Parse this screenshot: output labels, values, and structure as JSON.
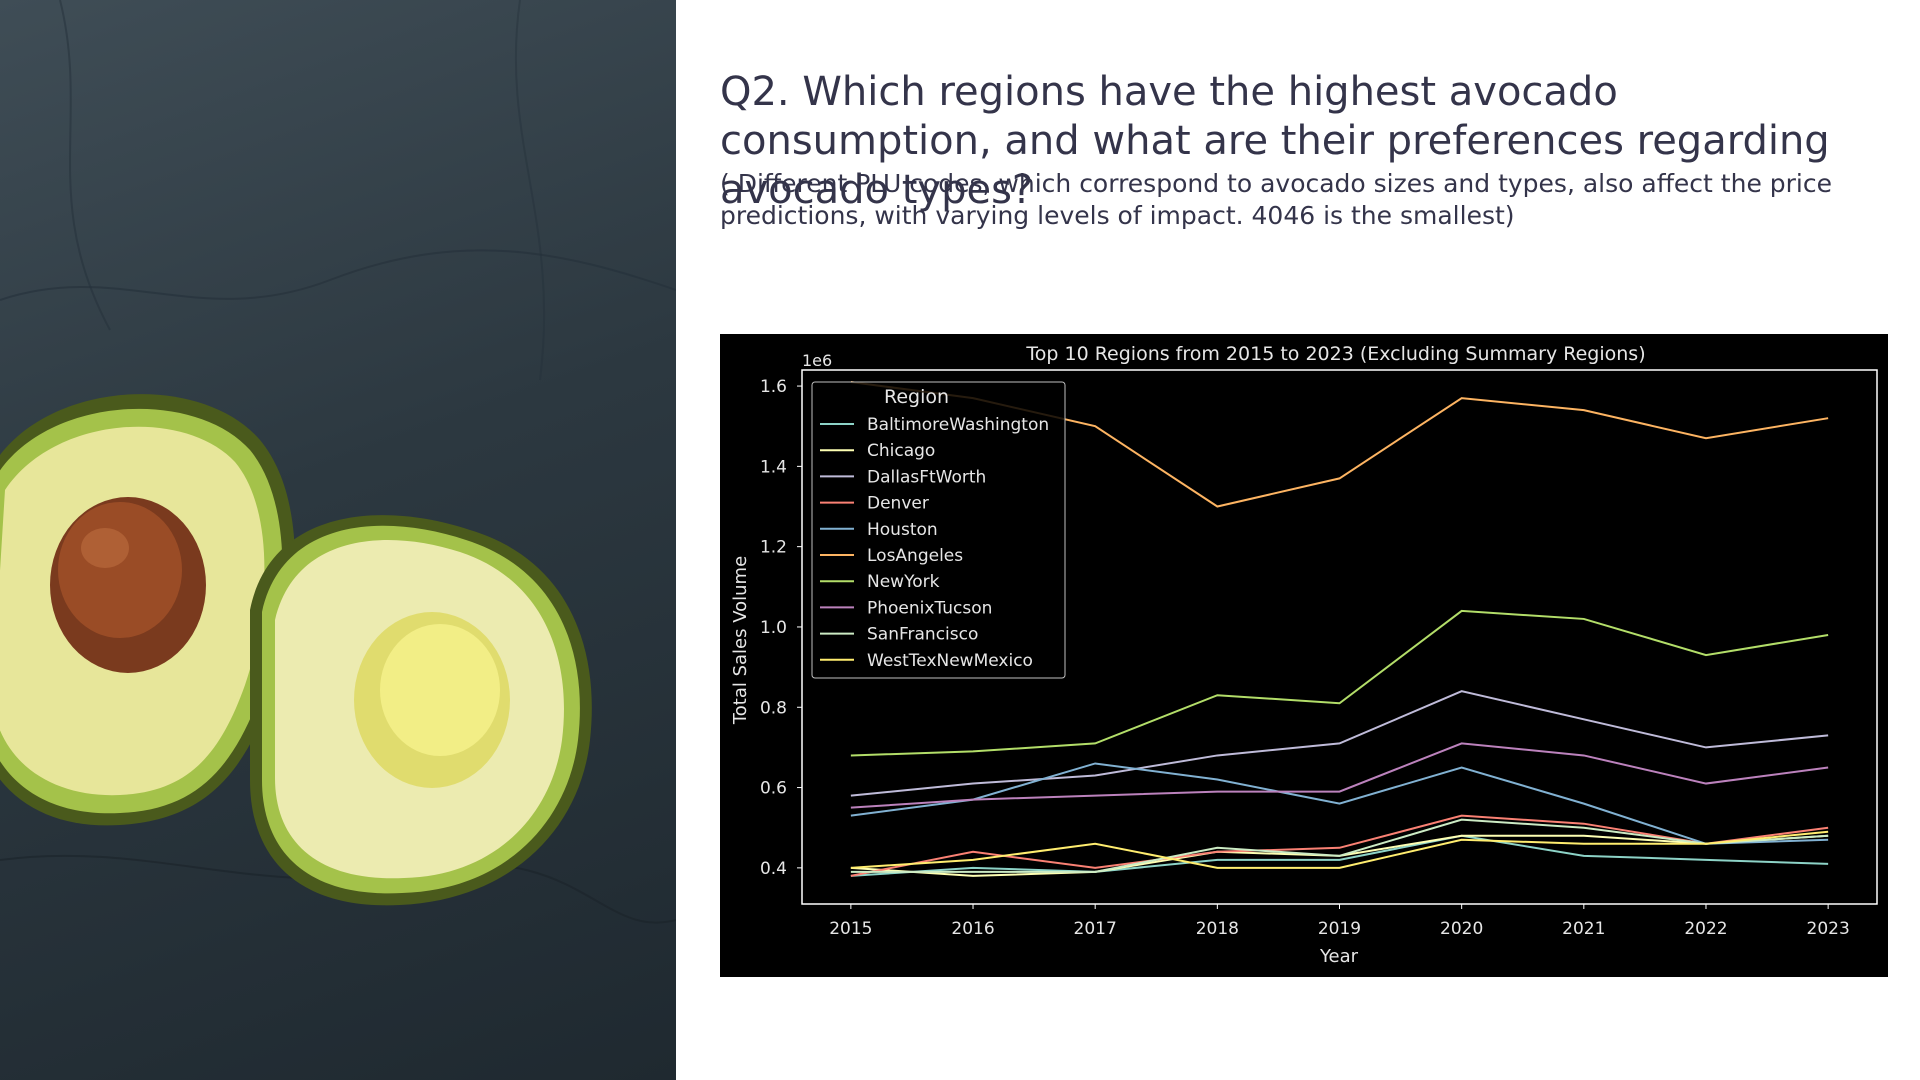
{
  "slide": {
    "title": "Q2. Which regions have the highest avocado consumption, and what are their preferences regarding avocado types?",
    "subtitle": "( Different PLU codes, which correspond to avocado sizes and types, also affect the price predictions, with varying levels of impact. 4046 is the smallest)",
    "image_subject": "halved-avocado-photo"
  },
  "chart_data": {
    "type": "line",
    "title": "Top 10 Regions from 2015 to 2023 (Excluding Summary Regions)",
    "xlabel": "Year",
    "ylabel": "Total Sales Volume",
    "y_scale_label": "1e6",
    "x": [
      2015,
      2016,
      2017,
      2018,
      2019,
      2020,
      2021,
      2022,
      2023
    ],
    "xlim": [
      2014.6,
      2023.4
    ],
    "ylim": [
      0.31,
      1.64
    ],
    "yticks": [
      0.4,
      0.6,
      0.8,
      1.0,
      1.2,
      1.4,
      1.6
    ],
    "ytick_labels": [
      "0.4",
      "0.6",
      "0.8",
      "1.0",
      "1.2",
      "1.4",
      "1.6"
    ],
    "xtick_labels": [
      "2015",
      "2016",
      "2017",
      "2018",
      "2019",
      "2020",
      "2021",
      "2022",
      "2023"
    ],
    "grid": false,
    "legend_title": "Region",
    "legend_position": "top-left",
    "background": "#000000",
    "series": [
      {
        "name": "BaltimoreWashington",
        "color": "#8dd3c7",
        "values": [
          0.38,
          0.4,
          0.39,
          0.42,
          0.42,
          0.48,
          0.43,
          0.42,
          0.41
        ]
      },
      {
        "name": "Chicago",
        "color": "#feffb3",
        "values": [
          0.4,
          0.38,
          0.39,
          0.44,
          0.43,
          0.48,
          0.48,
          0.46,
          0.48
        ]
      },
      {
        "name": "DallasFtWorth",
        "color": "#bfbbd9",
        "values": [
          0.58,
          0.61,
          0.63,
          0.68,
          0.71,
          0.84,
          0.77,
          0.7,
          0.73
        ]
      },
      {
        "name": "Denver",
        "color": "#fa8174",
        "values": [
          0.38,
          0.44,
          0.4,
          0.44,
          0.45,
          0.53,
          0.51,
          0.46,
          0.5
        ]
      },
      {
        "name": "Houston",
        "color": "#81b1d2",
        "values": [
          0.53,
          0.57,
          0.66,
          0.62,
          0.56,
          0.65,
          0.56,
          0.46,
          0.47
        ]
      },
      {
        "name": "LosAngeles",
        "color": "#fdb462",
        "values": [
          1.61,
          1.57,
          1.5,
          1.3,
          1.37,
          1.57,
          1.54,
          1.47,
          1.52
        ]
      },
      {
        "name": "NewYork",
        "color": "#b3de69",
        "values": [
          0.68,
          0.69,
          0.71,
          0.83,
          0.81,
          1.04,
          1.02,
          0.93,
          0.98
        ]
      },
      {
        "name": "PhoenixTucson",
        "color": "#bc82bd",
        "values": [
          0.55,
          0.57,
          0.58,
          0.59,
          0.59,
          0.71,
          0.68,
          0.61,
          0.65
        ]
      },
      {
        "name": "SanFrancisco",
        "color": "#ccebc4",
        "values": [
          0.39,
          0.39,
          0.39,
          0.45,
          0.43,
          0.52,
          0.5,
          0.46,
          0.48
        ]
      },
      {
        "name": "WestTexNewMexico",
        "color": "#ffed6f",
        "values": [
          0.4,
          0.42,
          0.46,
          0.4,
          0.4,
          0.47,
          0.46,
          0.46,
          0.49
        ]
      }
    ]
  }
}
